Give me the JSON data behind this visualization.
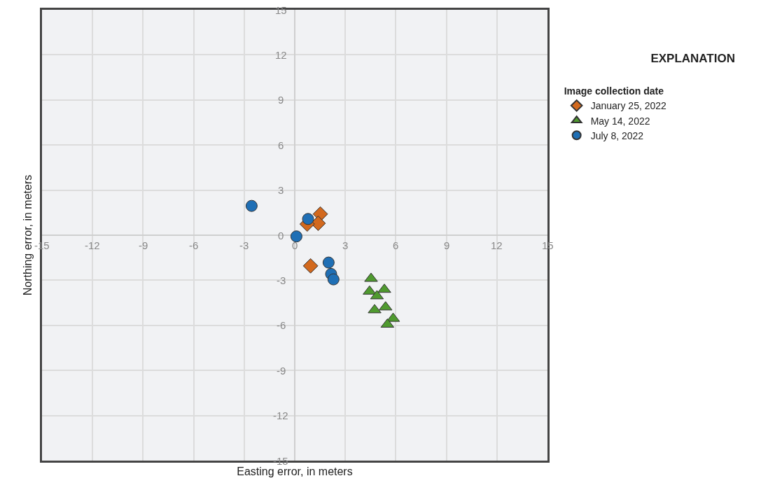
{
  "chart_data": {
    "type": "scatter",
    "title": "EXPLANATION",
    "legend_title": "Image collection date",
    "xlabel": "Easting error, in meters",
    "ylabel": "Northing error, in meters",
    "xlim": [
      -15,
      15
    ],
    "ylim": [
      -15,
      15
    ],
    "xticks": [
      -15,
      -12,
      -9,
      -6,
      -3,
      0,
      3,
      6,
      9,
      12,
      15
    ],
    "yticks": [
      -15,
      -12,
      -9,
      -6,
      -3,
      0,
      3,
      6,
      9,
      12,
      15
    ],
    "grid": true,
    "legend": "top right",
    "series": [
      {
        "name": "January 25, 2022",
        "color": "#d2691e",
        "marker": "diamond",
        "x": [
          1.52,
          1.39,
          0.74,
          0.94
        ],
        "values": [
          1.41,
          0.79,
          0.74,
          -2.04
        ]
      },
      {
        "name": "May 14, 2022",
        "color": "#4f9a2f",
        "marker": "triangle",
        "x": [
          4.53,
          5.32,
          4.44,
          4.88,
          5.39,
          4.74,
          5.84,
          5.5
        ],
        "values": [
          -2.89,
          -3.62,
          -3.74,
          -4.05,
          -4.79,
          -4.98,
          -5.55,
          -5.94
        ]
      },
      {
        "name": "July 8, 2022",
        "color": "#1f6fb5",
        "marker": "circle",
        "x": [
          -2.56,
          0.79,
          0.1,
          2.01,
          2.16,
          2.3
        ],
        "values": [
          1.95,
          1.08,
          -0.08,
          -1.82,
          -2.58,
          -2.94
        ]
      }
    ]
  }
}
